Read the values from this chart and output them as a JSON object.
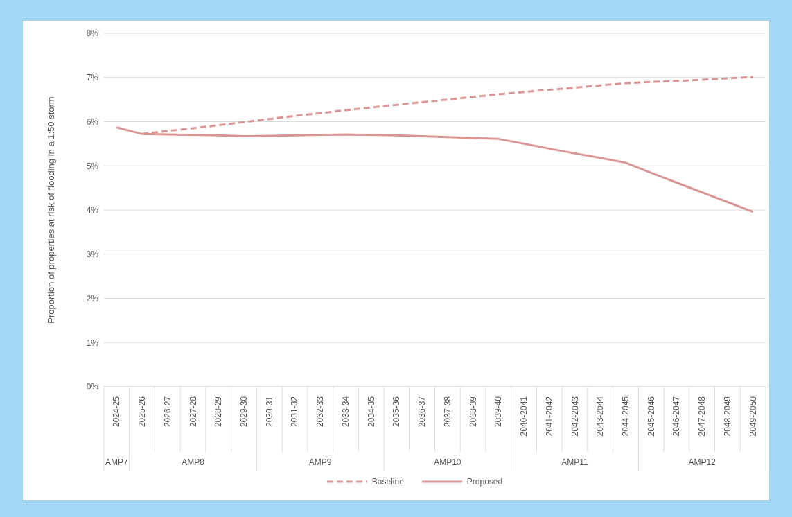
{
  "chart_data": {
    "type": "line",
    "ylabel": "Proportion of properties at risk of flooding in a 1:50 storm",
    "categories": [
      "2024-25",
      "2025-26",
      "2026-27",
      "2027-28",
      "2028-29",
      "2029-30",
      "2030-31",
      "2031-32",
      "2032-33",
      "2033-34",
      "2034-35",
      "2035-36",
      "2036-37",
      "2037-38",
      "2038-39",
      "2039-40",
      "2040-2041",
      "2041-2042",
      "2042-2043",
      "2043-2044",
      "2044-2045",
      "2045-2046",
      "2046-2047",
      "2047-2048",
      "2048-2049",
      "2049-2050"
    ],
    "series": [
      {
        "name": "Baseline",
        "color": "#d99694",
        "line_style": "dashed",
        "values": [
          null,
          5.72,
          5.79,
          5.85,
          5.92,
          5.99,
          6.06,
          6.13,
          6.19,
          6.26,
          6.32,
          6.38,
          6.44,
          6.5,
          6.56,
          6.62,
          6.67,
          6.72,
          6.77,
          6.82,
          6.87,
          6.9,
          6.92,
          6.95,
          6.98,
          7.01
        ]
      },
      {
        "name": "Proposed",
        "color": "#d99694",
        "line_style": "solid",
        "values": [
          5.87,
          5.72,
          5.71,
          5.7,
          5.69,
          5.67,
          5.68,
          5.69,
          5.7,
          5.71,
          5.7,
          5.69,
          5.67,
          5.65,
          5.63,
          5.61,
          5.5,
          5.39,
          5.28,
          5.18,
          5.07,
          4.84,
          4.62,
          4.4,
          4.18,
          3.96
        ]
      }
    ],
    "ylim": [
      0,
      8
    ],
    "yticks": [
      {
        "value": 0,
        "label": "0%"
      },
      {
        "value": 1,
        "label": "1%"
      },
      {
        "value": 2,
        "label": "2%"
      },
      {
        "value": 3,
        "label": "3%"
      },
      {
        "value": 4,
        "label": "4%"
      },
      {
        "value": 5,
        "label": "5%"
      },
      {
        "value": 6,
        "label": "6%"
      },
      {
        "value": 7,
        "label": "7%"
      },
      {
        "value": 8,
        "label": "8%"
      }
    ],
    "grid": "y",
    "legend": "bottom",
    "marker": "none",
    "annotations": [
      "AMP7",
      "AMP8",
      "AMP9",
      "AMP10",
      "AMP11",
      "AMP12"
    ]
  }
}
